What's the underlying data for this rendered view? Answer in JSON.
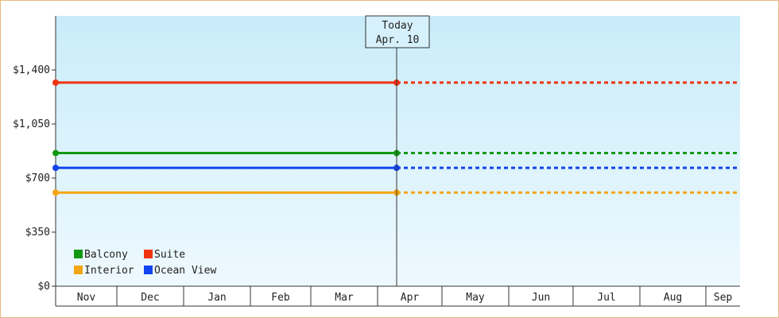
{
  "chart_data": {
    "type": "line",
    "title": "",
    "xlabel": "",
    "ylabel": "",
    "ylim": [
      0,
      1750
    ],
    "yticks": [
      0,
      350,
      700,
      1050,
      1400
    ],
    "ytick_labels": [
      "$0",
      "$350",
      "$700",
      "$1,050",
      "$1,400"
    ],
    "x_start": "Nov",
    "x_end": "Sep",
    "xticks": [
      "Nov",
      "Dec",
      "Jan",
      "Feb",
      "Mar",
      "Apr",
      "May",
      "Jun",
      "Jul",
      "Aug",
      "Sep"
    ],
    "today_marker": {
      "title": "Today",
      "date_label": "Apr. 10"
    },
    "series": [
      {
        "name": "Suite",
        "color": "#ee3311",
        "value": 1318
      },
      {
        "name": "Balcony",
        "color": "#119911",
        "value": 862
      },
      {
        "name": "Ocean View",
        "color": "#1144ee",
        "value": 766
      },
      {
        "name": "Interior",
        "color": "#f5a511",
        "value": 606
      }
    ],
    "legend": [
      {
        "name": "Balcony",
        "color": "#119911"
      },
      {
        "name": "Suite",
        "color": "#ee3311"
      },
      {
        "name": "Interior",
        "color": "#f5a511"
      },
      {
        "name": "Ocean View",
        "color": "#1144ee"
      }
    ],
    "legend_placement": "bottom-left",
    "grid": false
  }
}
